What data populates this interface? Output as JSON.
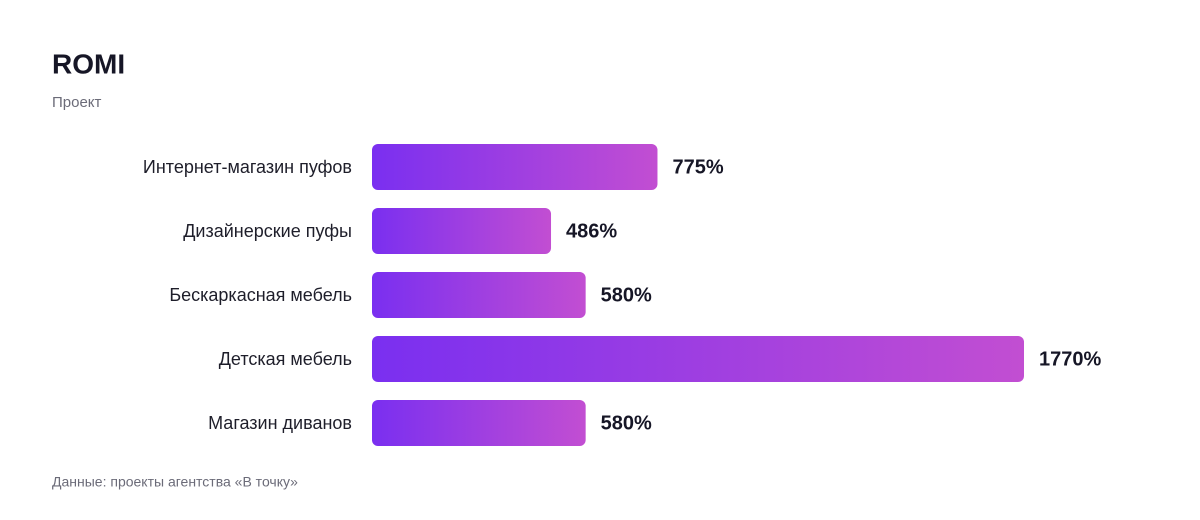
{
  "chart_data": {
    "type": "hbar",
    "title": "ROMI",
    "subtitle": "Проект",
    "categories": [
      "Интернет-магазин пуфов",
      "Дизайнерские пуфы",
      "Бескаркасная мебель",
      "Детская мебель",
      "Магазин диванов"
    ],
    "values": [
      775,
      486,
      580,
      1770,
      580
    ],
    "value_labels": [
      "775%",
      "486%",
      "580%",
      "1770%",
      "580%"
    ],
    "colors": [
      "#7a2ff0",
      "#c24ed2"
    ],
    "note": "Данные: проекты агентства «В точку»"
  }
}
